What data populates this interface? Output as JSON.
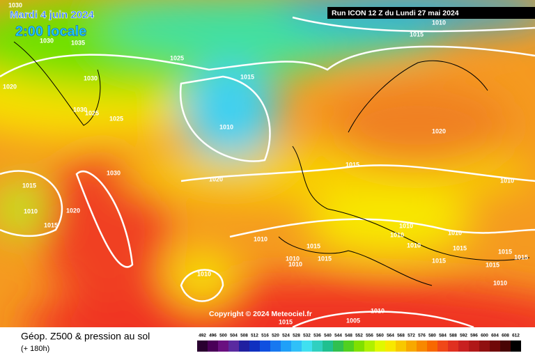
{
  "header": {
    "date": "Mardi 4 juin 2024",
    "time": "2:00 locale",
    "run": "Run ICON 12 Z du Lundi 27 mai 2024"
  },
  "copyright": "Copyright © 2024 Meteociel.fr",
  "footer": {
    "title": "Géop. Z500 & pression au sol",
    "lead": "(+ 180h)"
  },
  "scale": {
    "labels": [
      492,
      496,
      500,
      504,
      508,
      512,
      516,
      520,
      524,
      528,
      532,
      536,
      540,
      544,
      548,
      552,
      556,
      560,
      564,
      568,
      572,
      576,
      580,
      584,
      588,
      592,
      596,
      600,
      604,
      608,
      612
    ],
    "colors": [
      "#2a0030",
      "#4a0058",
      "#6a1080",
      "#5a2aa0",
      "#2020a0",
      "#1030c0",
      "#1050e0",
      "#1878f0",
      "#20a0f8",
      "#30c0f8",
      "#40e0f0",
      "#30d0c0",
      "#20c090",
      "#30c050",
      "#50d020",
      "#80e000",
      "#b0f000",
      "#e0f800",
      "#f8e800",
      "#f8c800",
      "#f8a800",
      "#f88800",
      "#f86800",
      "#f04818",
      "#e03020",
      "#c82020",
      "#b01818",
      "#901010",
      "#700808",
      "#480404",
      "#000000"
    ]
  },
  "isobars": [
    "1030",
    "1030",
    "1035",
    "1025",
    "1030",
    "1020",
    "1030",
    "1025",
    "1025",
    "1015",
    "1010",
    "1010",
    "1015",
    "1020",
    "1015",
    "1030",
    "1020",
    "1010",
    "1015",
    "1010",
    "1020",
    "1015",
    "1010",
    "1010",
    "1010",
    "1010",
    "1015",
    "1010",
    "1015",
    "1015",
    "1015",
    "1010",
    "1015",
    "1010",
    "1015",
    "1015",
    "1010",
    "1010",
    "1010",
    "1005",
    "1015"
  ]
}
